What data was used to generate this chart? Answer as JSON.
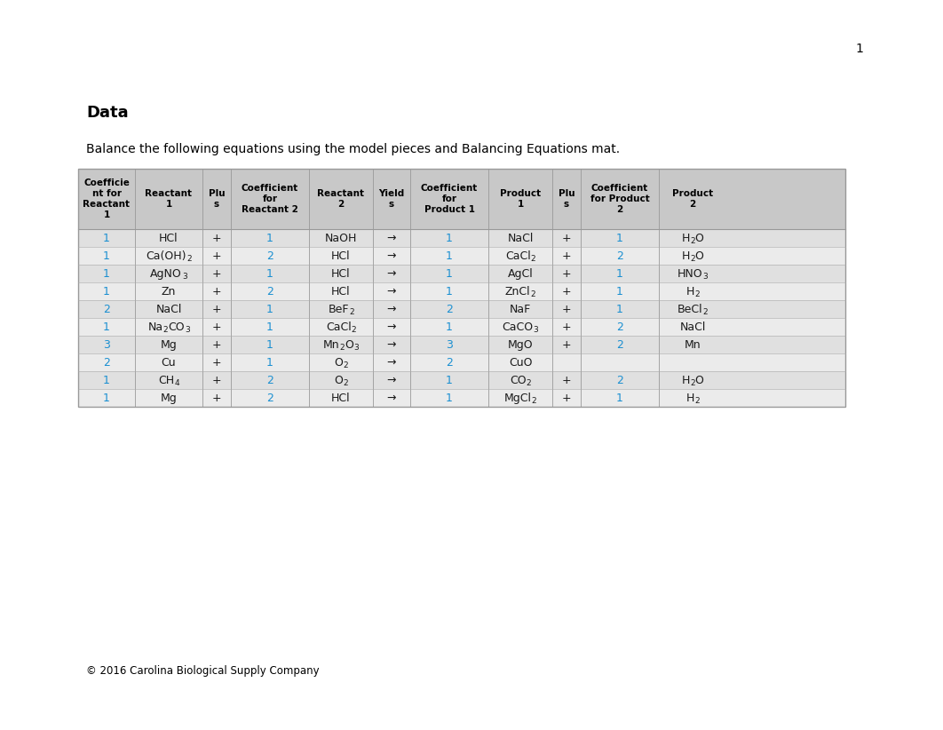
{
  "page_num": "1",
  "title": "Data",
  "subtitle": "Balance the following equations using the model pieces and Balancing Equations mat.",
  "footer": "© 2016 Carolina Biological Supply Company",
  "col_headers": [
    "Coefficie\nnt for\nReactant\n1",
    "Reactant\n1",
    "Plu\ns",
    "Coefficient\nfor\nReactant 2",
    "Reactant\n2",
    "Yield\ns",
    "Coefficient\nfor\nProduct 1",
    "Product\n1",
    "Plu\ns",
    "Coefficient\nfor Product\n2",
    "Product\n2"
  ],
  "blue_color": "#1A8FD1",
  "black_color": "#1a1a1a",
  "header_bg": "#C8C8C8",
  "row_bg_even": "#E0E0E0",
  "row_bg_odd": "#EBEBEB",
  "border_color": "#999999",
  "rows": [
    [
      "1",
      [
        [
          "HCl",
          0
        ]
      ],
      "+",
      "1",
      [
        [
          "NaOH",
          0
        ]
      ],
      "→",
      "1",
      [
        [
          "NaCl",
          0
        ]
      ],
      "+",
      "1",
      [
        [
          "H",
          0
        ],
        [
          "2",
          -1
        ],
        [
          "O",
          0
        ]
      ]
    ],
    [
      "1",
      [
        [
          "Ca(OH)",
          0
        ],
        [
          "2",
          -1
        ]
      ],
      "+",
      "2",
      [
        [
          "HCl",
          0
        ]
      ],
      "→",
      "1",
      [
        [
          "CaCl",
          0
        ],
        [
          "2",
          -1
        ]
      ],
      "+",
      "2",
      [
        [
          "H",
          0
        ],
        [
          "2",
          -1
        ],
        [
          "O",
          0
        ]
      ]
    ],
    [
      "1",
      [
        [
          "AgNO",
          0
        ],
        [
          "3",
          -1
        ]
      ],
      "+",
      "1",
      [
        [
          "HCl",
          0
        ]
      ],
      "→",
      "1",
      [
        [
          "AgCl",
          0
        ]
      ],
      "+",
      "1",
      [
        [
          "HNO",
          0
        ],
        [
          "3",
          -1
        ]
      ]
    ],
    [
      "1",
      [
        [
          "Zn",
          0
        ]
      ],
      "+",
      "2",
      [
        [
          "HCl",
          0
        ]
      ],
      "→",
      "1",
      [
        [
          "ZnCl",
          0
        ],
        [
          "2",
          -1
        ]
      ],
      "+",
      "1",
      [
        [
          "H",
          0
        ],
        [
          "2",
          -1
        ]
      ]
    ],
    [
      "2",
      [
        [
          "NaCl",
          0
        ]
      ],
      "+",
      "1",
      [
        [
          "BeF",
          0
        ],
        [
          "2",
          -1
        ]
      ],
      "→",
      "2",
      [
        [
          "NaF",
          0
        ]
      ],
      "+",
      "1",
      [
        [
          "BeCl",
          0
        ],
        [
          "2",
          -1
        ]
      ]
    ],
    [
      "1",
      [
        [
          "Na",
          0
        ],
        [
          "2",
          -1
        ],
        [
          "CO",
          0
        ],
        [
          "3",
          -1
        ]
      ],
      "+",
      "1",
      [
        [
          "CaCl",
          0
        ],
        [
          "2",
          -1
        ]
      ],
      "→",
      "1",
      [
        [
          "CaCO",
          0
        ],
        [
          "3",
          -1
        ]
      ],
      "+",
      "2",
      [
        [
          "NaCl",
          0
        ]
      ]
    ],
    [
      "3",
      [
        [
          "Mg",
          0
        ]
      ],
      "+",
      "1",
      [
        [
          "Mn",
          0
        ],
        [
          "2",
          -1
        ],
        [
          "O",
          0
        ],
        [
          "3",
          -1
        ]
      ],
      "→",
      "3",
      [
        [
          "MgO",
          0
        ]
      ],
      "+",
      "2",
      [
        [
          "Mn",
          0
        ]
      ]
    ],
    [
      "2",
      [
        [
          "Cu",
          0
        ]
      ],
      "+",
      "1",
      [
        [
          "O",
          0
        ],
        [
          "2",
          -1
        ]
      ],
      "→",
      "2",
      [
        [
          "CuO",
          0
        ]
      ],
      "",
      "",
      []
    ],
    [
      "1",
      [
        [
          "CH",
          0
        ],
        [
          "4",
          -1
        ]
      ],
      "+",
      "2",
      [
        [
          "O",
          0
        ],
        [
          "2",
          -1
        ]
      ],
      "→",
      "1",
      [
        [
          "CO",
          0
        ],
        [
          "2",
          -1
        ]
      ],
      "+",
      "2",
      [
        [
          "H",
          0
        ],
        [
          "2",
          -1
        ],
        [
          "O",
          0
        ]
      ]
    ],
    [
      "1",
      [
        [
          "Mg",
          0
        ]
      ],
      "+",
      "2",
      [
        [
          "HCl",
          0
        ]
      ],
      "→",
      "1",
      [
        [
          "MgCl",
          0
        ],
        [
          "2",
          -1
        ]
      ],
      "+",
      "1",
      [
        [
          "H",
          0
        ],
        [
          "2",
          -1
        ]
      ]
    ]
  ]
}
